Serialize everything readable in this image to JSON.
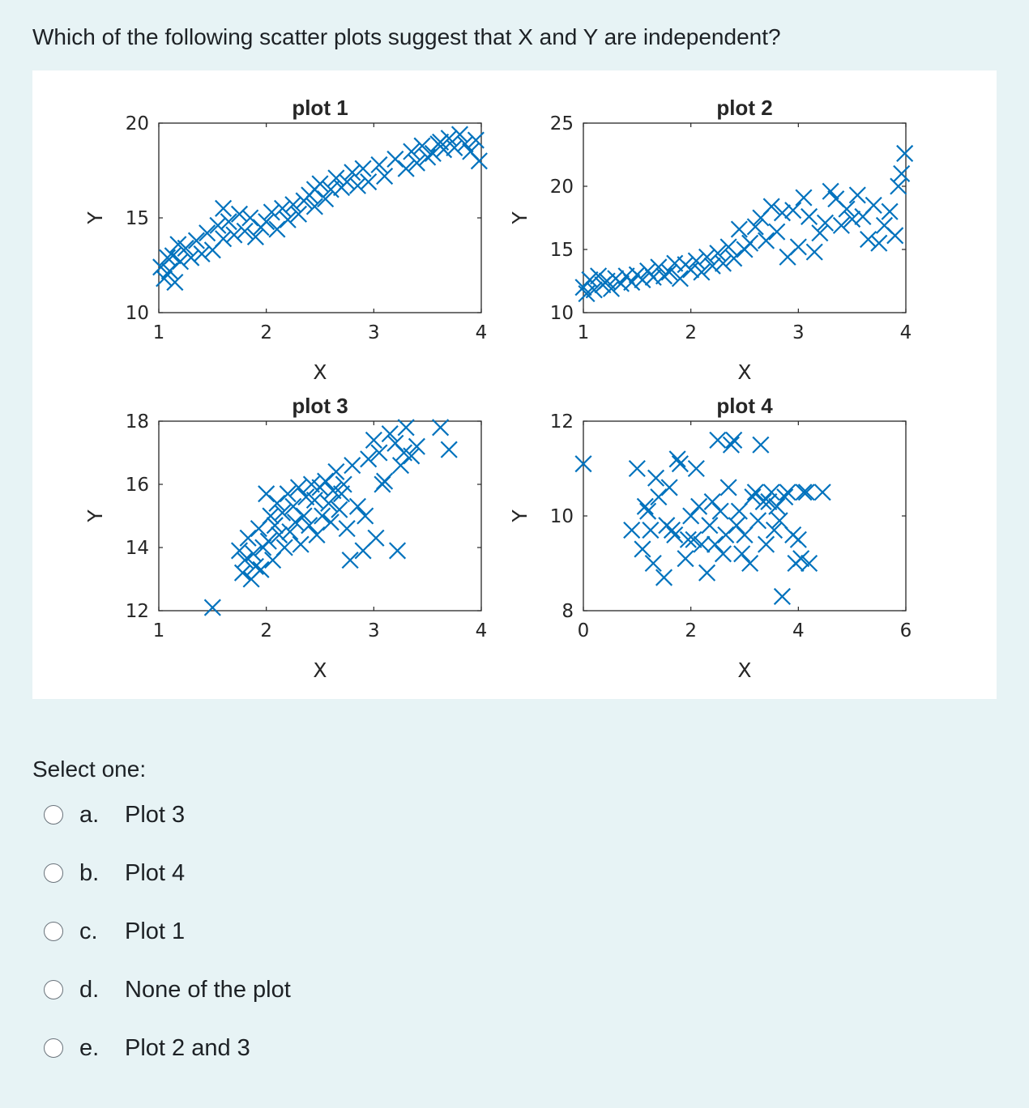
{
  "question": "Which of the following scatter plots suggest that X and Y are independent?",
  "select_label": "Select one:",
  "marker_color": "#0072bd",
  "chart_data": [
    {
      "type": "scatter",
      "title": "plot 1",
      "xlabel": "X",
      "ylabel": "Y",
      "xlim": [
        1,
        4
      ],
      "ylim": [
        10,
        20
      ],
      "xticks": [
        "1",
        "2",
        "3",
        "4"
      ],
      "yticks": [
        "10",
        "15",
        "20"
      ],
      "x": [
        1.02,
        1.05,
        1.08,
        1.1,
        1.13,
        1.15,
        1.2,
        1.25,
        1.3,
        1.35,
        1.4,
        1.45,
        1.5,
        1.55,
        1.6,
        1.65,
        1.7,
        1.75,
        1.8,
        1.85,
        1.9,
        1.95,
        2.0,
        2.05,
        2.1,
        2.15,
        2.2,
        2.25,
        2.3,
        2.35,
        2.4,
        2.45,
        2.5,
        2.55,
        2.6,
        2.65,
        2.7,
        2.75,
        2.8,
        2.85,
        2.9,
        2.95,
        3.1,
        3.2,
        3.3,
        3.35,
        3.4,
        3.45,
        3.5,
        3.55,
        3.6,
        3.65,
        3.7,
        3.75,
        3.8,
        3.85,
        3.9,
        3.95,
        3.98,
        1.18,
        1.6,
        2.45,
        3.05,
        3.62
      ],
      "y": [
        12.4,
        11.8,
        12.9,
        12.2,
        13.0,
        11.6,
        12.7,
        13.4,
        12.9,
        13.8,
        13.1,
        14.2,
        13.3,
        14.6,
        13.9,
        14.8,
        14.1,
        15.2,
        14.3,
        15.0,
        14.0,
        14.5,
        14.8,
        15.3,
        14.4,
        15.5,
        14.9,
        15.7,
        15.2,
        15.9,
        16.2,
        15.6,
        16.8,
        16.0,
        16.5,
        17.1,
        16.6,
        16.9,
        17.4,
        16.7,
        17.6,
        16.9,
        17.2,
        18.1,
        17.6,
        18.5,
        17.9,
        18.8,
        18.2,
        18.4,
        18.9,
        18.6,
        19.2,
        18.7,
        19.4,
        18.9,
        18.5,
        19.1,
        18.0,
        13.6,
        15.5,
        16.5,
        17.8,
        19.0
      ]
    },
    {
      "type": "scatter",
      "title": "plot 2",
      "xlabel": "X",
      "ylabel": "Y",
      "xlim": [
        1,
        4
      ],
      "ylim": [
        10,
        25
      ],
      "xticks": [
        "1",
        "2",
        "3",
        "4"
      ],
      "yticks": [
        "10",
        "15",
        "20",
        "25"
      ],
      "x": [
        1.0,
        1.03,
        1.06,
        1.1,
        1.14,
        1.18,
        1.22,
        1.26,
        1.3,
        1.35,
        1.4,
        1.45,
        1.5,
        1.55,
        1.6,
        1.65,
        1.7,
        1.75,
        1.8,
        1.85,
        1.9,
        1.95,
        2.0,
        2.05,
        2.1,
        2.15,
        2.2,
        2.25,
        2.3,
        2.35,
        2.4,
        2.45,
        2.5,
        2.55,
        2.6,
        2.65,
        2.7,
        2.75,
        2.8,
        2.85,
        2.9,
        2.95,
        3.0,
        3.05,
        3.1,
        3.15,
        3.2,
        3.25,
        3.3,
        3.35,
        3.4,
        3.45,
        3.5,
        3.55,
        3.6,
        3.65,
        3.7,
        3.75,
        3.8,
        3.85,
        3.9,
        3.93,
        3.96,
        3.99
      ],
      "y": [
        12.0,
        11.5,
        12.6,
        11.8,
        12.9,
        12.2,
        12.5,
        11.9,
        12.7,
        12.3,
        12.9,
        12.4,
        13.0,
        12.6,
        13.3,
        12.8,
        13.6,
        12.9,
        13.2,
        13.9,
        12.7,
        13.8,
        13.4,
        14.1,
        13.2,
        14.4,
        13.7,
        14.7,
        13.9,
        15.2,
        14.3,
        16.6,
        15.0,
        15.5,
        16.8,
        17.5,
        15.7,
        18.4,
        16.4,
        17.9,
        14.4,
        18.1,
        15.2,
        19.1,
        17.6,
        14.8,
        16.3,
        17.1,
        19.6,
        19.0,
        16.9,
        18.2,
        17.4,
        19.3,
        17.6,
        15.8,
        18.5,
        15.5,
        16.9,
        18.0,
        16.1,
        20.0,
        21.0,
        22.6
      ]
    },
    {
      "type": "scatter",
      "title": "plot 3",
      "xlabel": "X",
      "ylabel": "Y",
      "xlim": [
        1,
        4
      ],
      "ylim": [
        12,
        18
      ],
      "xticks": [
        "1",
        "2",
        "3",
        "4"
      ],
      "yticks": [
        "12",
        "14",
        "16",
        "18"
      ],
      "x": [
        1.5,
        1.75,
        1.78,
        1.8,
        1.83,
        1.86,
        1.88,
        1.9,
        1.93,
        1.95,
        1.97,
        2.0,
        2.02,
        2.04,
        2.06,
        2.08,
        2.1,
        2.12,
        2.15,
        2.17,
        2.2,
        2.22,
        2.25,
        2.27,
        2.3,
        2.32,
        2.35,
        2.37,
        2.4,
        2.42,
        2.45,
        2.47,
        2.5,
        2.52,
        2.55,
        2.58,
        2.6,
        2.62,
        2.65,
        2.68,
        2.7,
        2.72,
        2.75,
        2.8,
        2.85,
        2.9,
        2.95,
        3.0,
        3.05,
        3.1,
        3.15,
        3.2,
        3.25,
        3.28,
        3.3,
        3.35,
        3.4,
        3.62,
        3.7,
        2.78,
        2.92,
        3.02,
        3.22,
        3.08
      ],
      "y": [
        12.1,
        13.9,
        13.2,
        13.6,
        14.3,
        13.0,
        13.8,
        13.4,
        14.6,
        13.3,
        14.0,
        15.7,
        14.2,
        15.0,
        13.6,
        14.7,
        15.4,
        14.4,
        15.1,
        14.0,
        15.7,
        14.5,
        15.3,
        14.8,
        15.9,
        14.1,
        15.0,
        15.6,
        14.7,
        16.0,
        15.5,
        14.4,
        15.9,
        15.0,
        16.1,
        15.4,
        14.8,
        15.8,
        16.4,
        15.2,
        15.7,
        16.0,
        14.6,
        16.6,
        15.3,
        13.9,
        16.8,
        17.4,
        17.0,
        16.1,
        17.6,
        17.3,
        16.6,
        17.0,
        17.8,
        16.9,
        17.2,
        17.8,
        17.1,
        13.6,
        15.0,
        14.3,
        13.9,
        16.0
      ]
    },
    {
      "type": "scatter",
      "title": "plot 4",
      "xlabel": "X",
      "ylabel": "Y",
      "xlim": [
        0,
        6
      ],
      "ylim": [
        8,
        12
      ],
      "xticks": [
        "0",
        "2",
        "4",
        "6"
      ],
      "yticks": [
        "8",
        "10",
        "12"
      ],
      "x": [
        0.0,
        0.9,
        1.0,
        1.1,
        1.2,
        1.3,
        1.4,
        1.5,
        1.6,
        1.7,
        1.8,
        1.9,
        2.0,
        2.1,
        2.2,
        2.3,
        2.4,
        2.5,
        2.6,
        2.7,
        2.8,
        2.9,
        3.0,
        3.1,
        3.2,
        3.3,
        3.4,
        3.5,
        3.6,
        3.7,
        3.8,
        3.9,
        4.0,
        4.1,
        4.2,
        1.15,
        1.35,
        1.55,
        1.75,
        1.95,
        2.15,
        2.35,
        2.55,
        2.75,
        2.95,
        3.15,
        3.35,
        3.55,
        3.75,
        3.95,
        4.15,
        1.25,
        1.65,
        2.05,
        2.45,
        2.85,
        3.25,
        3.65,
        4.05,
        2.65,
        3.45,
        4.45
      ],
      "y": [
        11.1,
        9.7,
        11.0,
        9.3,
        10.1,
        9.0,
        10.4,
        8.7,
        10.6,
        9.6,
        11.1,
        9.1,
        10.0,
        11.0,
        9.4,
        8.8,
        10.3,
        11.6,
        9.2,
        10.6,
        11.6,
        10.1,
        9.6,
        9.0,
        10.5,
        11.5,
        9.4,
        10.5,
        10.2,
        8.3,
        10.5,
        9.6,
        9.5,
        10.5,
        9.0,
        10.2,
        10.8,
        9.8,
        11.2,
        9.5,
        10.2,
        9.8,
        10.1,
        11.5,
        9.2,
        10.4,
        10.3,
        9.7,
        10.4,
        9.0,
        10.5,
        9.7,
        9.7,
        9.5,
        9.4,
        9.8,
        9.9,
        9.9,
        9.1,
        9.6,
        10.3,
        10.5
      ]
    }
  ],
  "options": [
    {
      "letter": "a.",
      "text": "Plot 3"
    },
    {
      "letter": "b.",
      "text": "Plot 4"
    },
    {
      "letter": "c.",
      "text": "Plot 1"
    },
    {
      "letter": "d.",
      "text": "None of the plot"
    },
    {
      "letter": "e.",
      "text": "Plot 2 and 3"
    }
  ]
}
